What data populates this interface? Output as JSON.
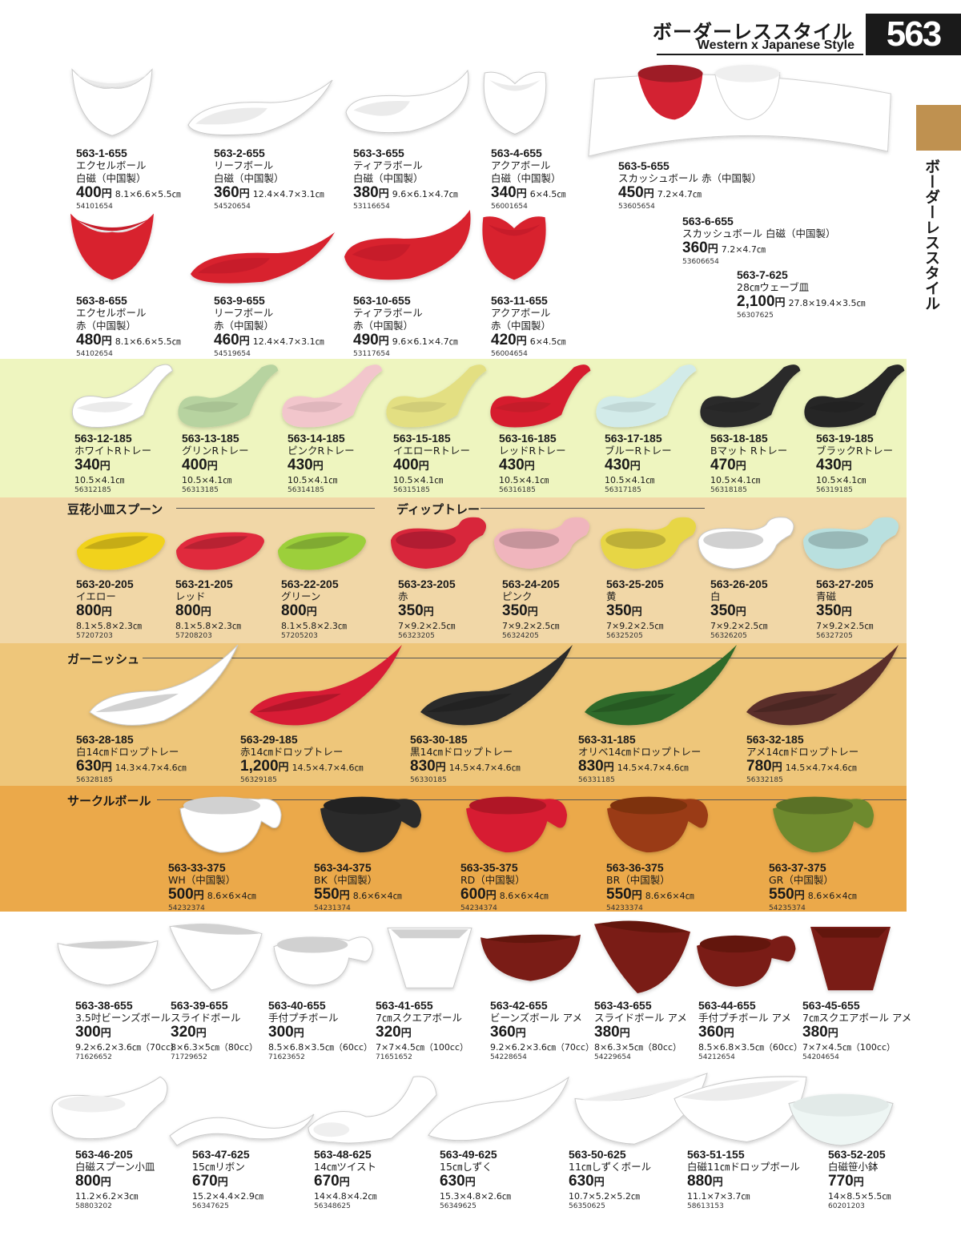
{
  "header": {
    "title_ja": "ボーダーレススタイル",
    "title_en": "Western x Japanese Style",
    "page_number": "563",
    "side_label": "ボーダーレススタイル"
  },
  "sections": {
    "s1": "豆花小皿スプーン",
    "s2": "ディップトレー",
    "s3": "ガーニッシュ",
    "s4": "サークルボール"
  },
  "items": {
    "i1": {
      "code": "563-1-655",
      "name": "エクセルボール",
      "name2": "白磁（中国製）",
      "price": "400",
      "size": "8.1×6.6×5.5㎝",
      "jan": "54101654",
      "color": "#ffffff"
    },
    "i2": {
      "code": "563-2-655",
      "name": "リーフボール",
      "name2": "白磁（中国製）",
      "price": "360",
      "size": "12.4×4.7×3.1㎝",
      "jan": "54520654",
      "color": "#ffffff"
    },
    "i3": {
      "code": "563-3-655",
      "name": "ティアラボール",
      "name2": "白磁（中国製）",
      "price": "380",
      "size": "9.6×6.1×4.7㎝",
      "jan": "53116654",
      "color": "#ffffff"
    },
    "i4": {
      "code": "563-4-655",
      "name": "アクアボール",
      "name2": "白磁（中国製）",
      "price": "340",
      "size": "6×4.5㎝",
      "jan": "56001654",
      "color": "#ffffff"
    },
    "i5": {
      "code": "563-5-655",
      "name": "スカッシュボール 赤（中国製）",
      "price": "450",
      "size": "7.2×4.7㎝",
      "jan": "53605654",
      "color": "#d32232"
    },
    "i6": {
      "code": "563-6-655",
      "name": "スカッシュボール 白磁（中国製）",
      "price": "360",
      "size": "7.2×4.7㎝",
      "jan": "53606654",
      "color": "#ffffff"
    },
    "i7": {
      "code": "563-7-625",
      "name": "28㎝ウェーブ皿",
      "price": "2,100",
      "size": "27.8×19.4×3.5㎝",
      "jan": "56307625",
      "color": "#ffffff"
    },
    "i8": {
      "code": "563-8-655",
      "name": "エクセルボール",
      "name2": "赤（中国製）",
      "price": "480",
      "size": "8.1×6.6×5.5㎝",
      "jan": "54102654",
      "color": "#d8202f"
    },
    "i9": {
      "code": "563-9-655",
      "name": "リーフボール",
      "name2": "赤（中国製）",
      "price": "460",
      "size": "12.4×4.7×3.1㎝",
      "jan": "54519654",
      "color": "#d8202f"
    },
    "i10": {
      "code": "563-10-655",
      "name": "ティアラボール",
      "name2": "赤（中国製）",
      "price": "490",
      "size": "9.6×6.1×4.7㎝",
      "jan": "53117654",
      "color": "#d8202f"
    },
    "i11": {
      "code": "563-11-655",
      "name": "アクアボール",
      "name2": "赤（中国製）",
      "price": "420",
      "size": "6×4.5㎝",
      "jan": "56004654",
      "color": "#d8202f"
    },
    "i12": {
      "code": "563-12-185",
      "name": "ホワイトRトレー",
      "price": "340",
      "size": "10.5×4.1㎝",
      "jan": "56312185",
      "color": "#ffffff"
    },
    "i13": {
      "code": "563-13-185",
      "name": "グリンRトレー",
      "price": "400",
      "size": "10.5×4.1㎝",
      "jan": "56313185",
      "color": "#b7d3a0"
    },
    "i14": {
      "code": "563-14-185",
      "name": "ピンクRトレー",
      "price": "430",
      "size": "10.5×4.1㎝",
      "jan": "56314185",
      "color": "#f2c6cc"
    },
    "i15": {
      "code": "563-15-185",
      "name": "イエローRトレー",
      "price": "400",
      "size": "10.5×4.1㎝",
      "jan": "56315185",
      "color": "#e3df82"
    },
    "i16": {
      "code": "563-16-185",
      "name": "レッドRトレー",
      "price": "430",
      "size": "10.5×4.1㎝",
      "jan": "56316185",
      "color": "#d61e2d"
    },
    "i17": {
      "code": "563-17-185",
      "name": "ブルーRトレー",
      "price": "430",
      "size": "10.5×4.1㎝",
      "jan": "56317185",
      "color": "#d2ebe9"
    },
    "i18": {
      "code": "563-18-185",
      "name": "Bマット Rトレー",
      "price": "470",
      "size": "10.5×4.1㎝",
      "jan": "56318185",
      "color": "#2a2a2a"
    },
    "i19": {
      "code": "563-19-185",
      "name": "ブラックRトレー",
      "price": "430",
      "size": "10.5×4.1㎝",
      "jan": "56319185",
      "color": "#262626"
    },
    "i20": {
      "code": "563-20-205",
      "name": "イエロー",
      "price": "800",
      "size": "8.1×5.8×2.3㎝",
      "jan": "57207203",
      "color": "#f1d21e"
    },
    "i21": {
      "code": "563-21-205",
      "name": "レッド",
      "price": "800",
      "size": "8.1×5.8×2.3㎝",
      "jan": "57208203",
      "color": "#e02a3e"
    },
    "i22": {
      "code": "563-22-205",
      "name": "グリーン",
      "price": "800",
      "size": "8.1×5.8×2.3㎝",
      "jan": "57205203",
      "color": "#9ccf3a"
    },
    "i23": {
      "code": "563-23-205",
      "name": "赤",
      "price": "350",
      "size": "7×9.2×2.5㎝",
      "jan": "56323205",
      "color": "#d8253a"
    },
    "i24": {
      "code": "563-24-205",
      "name": "ピンク",
      "price": "350",
      "size": "7×9.2×2.5㎝",
      "jan": "56324205",
      "color": "#f0b5bd"
    },
    "i25": {
      "code": "563-25-205",
      "name": "黄",
      "price": "350",
      "size": "7×9.2×2.5㎝",
      "jan": "56325205",
      "color": "#e7d645"
    },
    "i26": {
      "code": "563-26-205",
      "name": "白",
      "price": "350",
      "size": "7×9.2×2.5㎝",
      "jan": "56326205",
      "color": "#ffffff"
    },
    "i27": {
      "code": "563-27-205",
      "name": "青磁",
      "price": "350",
      "size": "7×9.2×2.5㎝",
      "jan": "56327205",
      "color": "#b9e0df"
    },
    "i28": {
      "code": "563-28-185",
      "name": "白14㎝ドロップトレー",
      "price": "630",
      "size": "14.3×4.7×4.6㎝",
      "jan": "56328185",
      "color": "#ffffff"
    },
    "i29": {
      "code": "563-29-185",
      "name": "赤14㎝ドロップトレー",
      "price": "1,200",
      "size": "14.5×4.7×4.6㎝",
      "jan": "56329185",
      "color": "#d81f34"
    },
    "i30": {
      "code": "563-30-185",
      "name": "黒14㎝ドロップトレー",
      "price": "830",
      "size": "14.5×4.7×4.6㎝",
      "jan": "56330185",
      "color": "#2a2a2a"
    },
    "i31": {
      "code": "563-31-185",
      "name": "オリベ14㎝ドロップトレー",
      "price": "830",
      "size": "14.5×4.7×4.6㎝",
      "jan": "56331185",
      "color": "#2f6b2c"
    },
    "i32": {
      "code": "563-32-185",
      "name": "アメ14㎝ドロップトレー",
      "price": "780",
      "size": "14.5×4.7×4.6㎝",
      "jan": "56332185",
      "color": "#5a2e2a"
    },
    "i33": {
      "code": "563-33-375",
      "name": "WH（中国製）",
      "price": "500",
      "size": "8.6×6×4㎝",
      "jan": "54232374",
      "color": "#ffffff"
    },
    "i34": {
      "code": "563-34-375",
      "name": "BK（中国製）",
      "price": "550",
      "size": "8.6×6×4㎝",
      "jan": "54231374",
      "color": "#2b2b2b"
    },
    "i35": {
      "code": "563-35-375",
      "name": "RD（中国製）",
      "price": "600",
      "size": "8.6×6×4㎝",
      "jan": "54234374",
      "color": "#d71e30"
    },
    "i36": {
      "code": "563-36-375",
      "name": "BR（中国製）",
      "price": "550",
      "size": "8.6×6×4㎝",
      "jan": "54233374",
      "color": "#9a3a14"
    },
    "i37": {
      "code": "563-37-375",
      "name": "GR（中国製）",
      "price": "550",
      "size": "8.6×6×4㎝",
      "jan": "54235374",
      "color": "#6e8a2e"
    },
    "i38": {
      "code": "563-38-655",
      "name": "3.5吋ビーンズボール",
      "price": "300",
      "size": "9.2×6.2×3.6㎝（70cc）",
      "jan": "71626652",
      "color": "#ffffff"
    },
    "i39": {
      "code": "563-39-655",
      "name": "スライドボール",
      "price": "320",
      "size": "8×6.3×5㎝（80cc）",
      "jan": "71729652",
      "color": "#ffffff"
    },
    "i40": {
      "code": "563-40-655",
      "name": "手付プチボール",
      "price": "300",
      "size": "8.5×6.8×3.5㎝（60cc）",
      "jan": "71623652",
      "color": "#ffffff"
    },
    "i41": {
      "code": "563-41-655",
      "name": "7㎝スクエアボール",
      "price": "320",
      "size": "7×7×4.5㎝（100cc）",
      "jan": "71651652",
      "color": "#ffffff"
    },
    "i42": {
      "code": "563-42-655",
      "name": "ビーンズボール アメ",
      "price": "360",
      "size": "9.2×6.2×3.6㎝（70cc）",
      "jan": "54228654",
      "color": "#7a1d14"
    },
    "i43": {
      "code": "563-43-655",
      "name": "スライドボール アメ",
      "price": "380",
      "size": "8×6.3×5㎝（80cc）",
      "jan": "54229654",
      "color": "#7a1d14"
    },
    "i44": {
      "code": "563-44-655",
      "name": "手付プチボール アメ",
      "price": "360",
      "size": "8.5×6.8×3.5㎝（60cc）",
      "jan": "54212654",
      "color": "#7a1d14"
    },
    "i45": {
      "code": "563-45-655",
      "name": "7㎝スクエアボール アメ",
      "price": "380",
      "size": "7×7×4.5㎝（100cc）",
      "jan": "54204654",
      "color": "#7a1d14"
    },
    "i46": {
      "code": "563-46-205",
      "name": "白磁スプーン小皿",
      "price": "800",
      "size": "11.2×6.2×3㎝",
      "jan": "58803202",
      "color": "#ffffff"
    },
    "i47": {
      "code": "563-47-625",
      "name": "15㎝リボン",
      "price": "670",
      "size": "15.2×4.4×2.9㎝",
      "jan": "56347625",
      "color": "#ffffff"
    },
    "i48": {
      "code": "563-48-625",
      "name": "14㎝ツイスト",
      "price": "670",
      "size": "14×4.8×4.2㎝",
      "jan": "56348625",
      "color": "#ffffff"
    },
    "i49": {
      "code": "563-49-625",
      "name": "15㎝しずく",
      "price": "630",
      "size": "15.3×4.8×2.6㎝",
      "jan": "56349625",
      "color": "#ffffff"
    },
    "i50": {
      "code": "563-50-625",
      "name": "11㎝しずくボール",
      "price": "630",
      "size": "10.7×5.2×5.2㎝",
      "jan": "56350625",
      "color": "#ffffff"
    },
    "i51": {
      "code": "563-51-155",
      "name": "白磁11㎝ドロップボール",
      "price": "880",
      "size": "11.1×7×3.7㎝",
      "jan": "58613153",
      "color": "#ffffff"
    },
    "i52": {
      "code": "563-52-205",
      "name": "白磁笹小鉢",
      "price": "770",
      "size": "14×8.5×5.5㎝",
      "jan": "60201203",
      "color": "#eef6f4"
    }
  },
  "yen": "円"
}
